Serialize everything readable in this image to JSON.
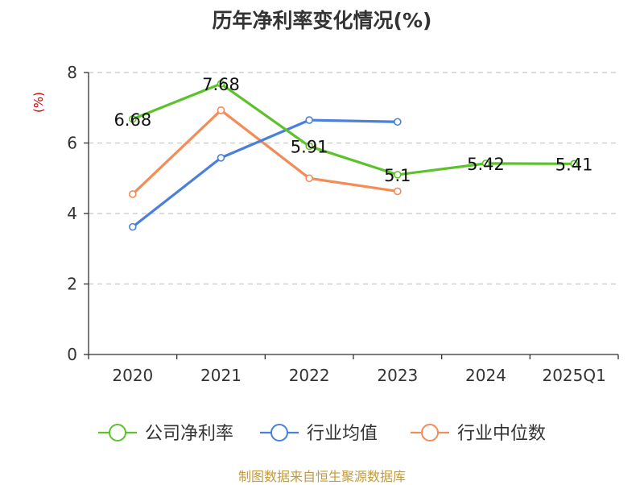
{
  "chart_data": {
    "type": "line",
    "title": "历年净利率变化情况(%)",
    "ylabel": "(%)",
    "xlabel": "",
    "categories": [
      "2020",
      "2021",
      "2022",
      "2023",
      "2024",
      "2025Q1"
    ],
    "ylim": [
      0,
      8
    ],
    "yticks": [
      0,
      2,
      4,
      6,
      8
    ],
    "grid": true,
    "legend_position": "bottom",
    "series": [
      {
        "name": "公司净利率",
        "color": "#5cc22b",
        "values": [
          6.68,
          7.68,
          5.91,
          5.1,
          5.42,
          5.41
        ],
        "labels": [
          "6.68",
          "7.68",
          "5.91",
          "5.1",
          "5.42",
          "5.41"
        ]
      },
      {
        "name": "行业均值",
        "color": "#4a7fdb",
        "values": [
          3.62,
          5.58,
          6.65,
          6.6,
          null,
          null
        ]
      },
      {
        "name": "行业中位数",
        "color": "#f28c58",
        "values": [
          4.55,
          6.93,
          5.0,
          4.63,
          null,
          null
        ]
      }
    ]
  },
  "source": "制图数据来自恒生聚源数据库"
}
